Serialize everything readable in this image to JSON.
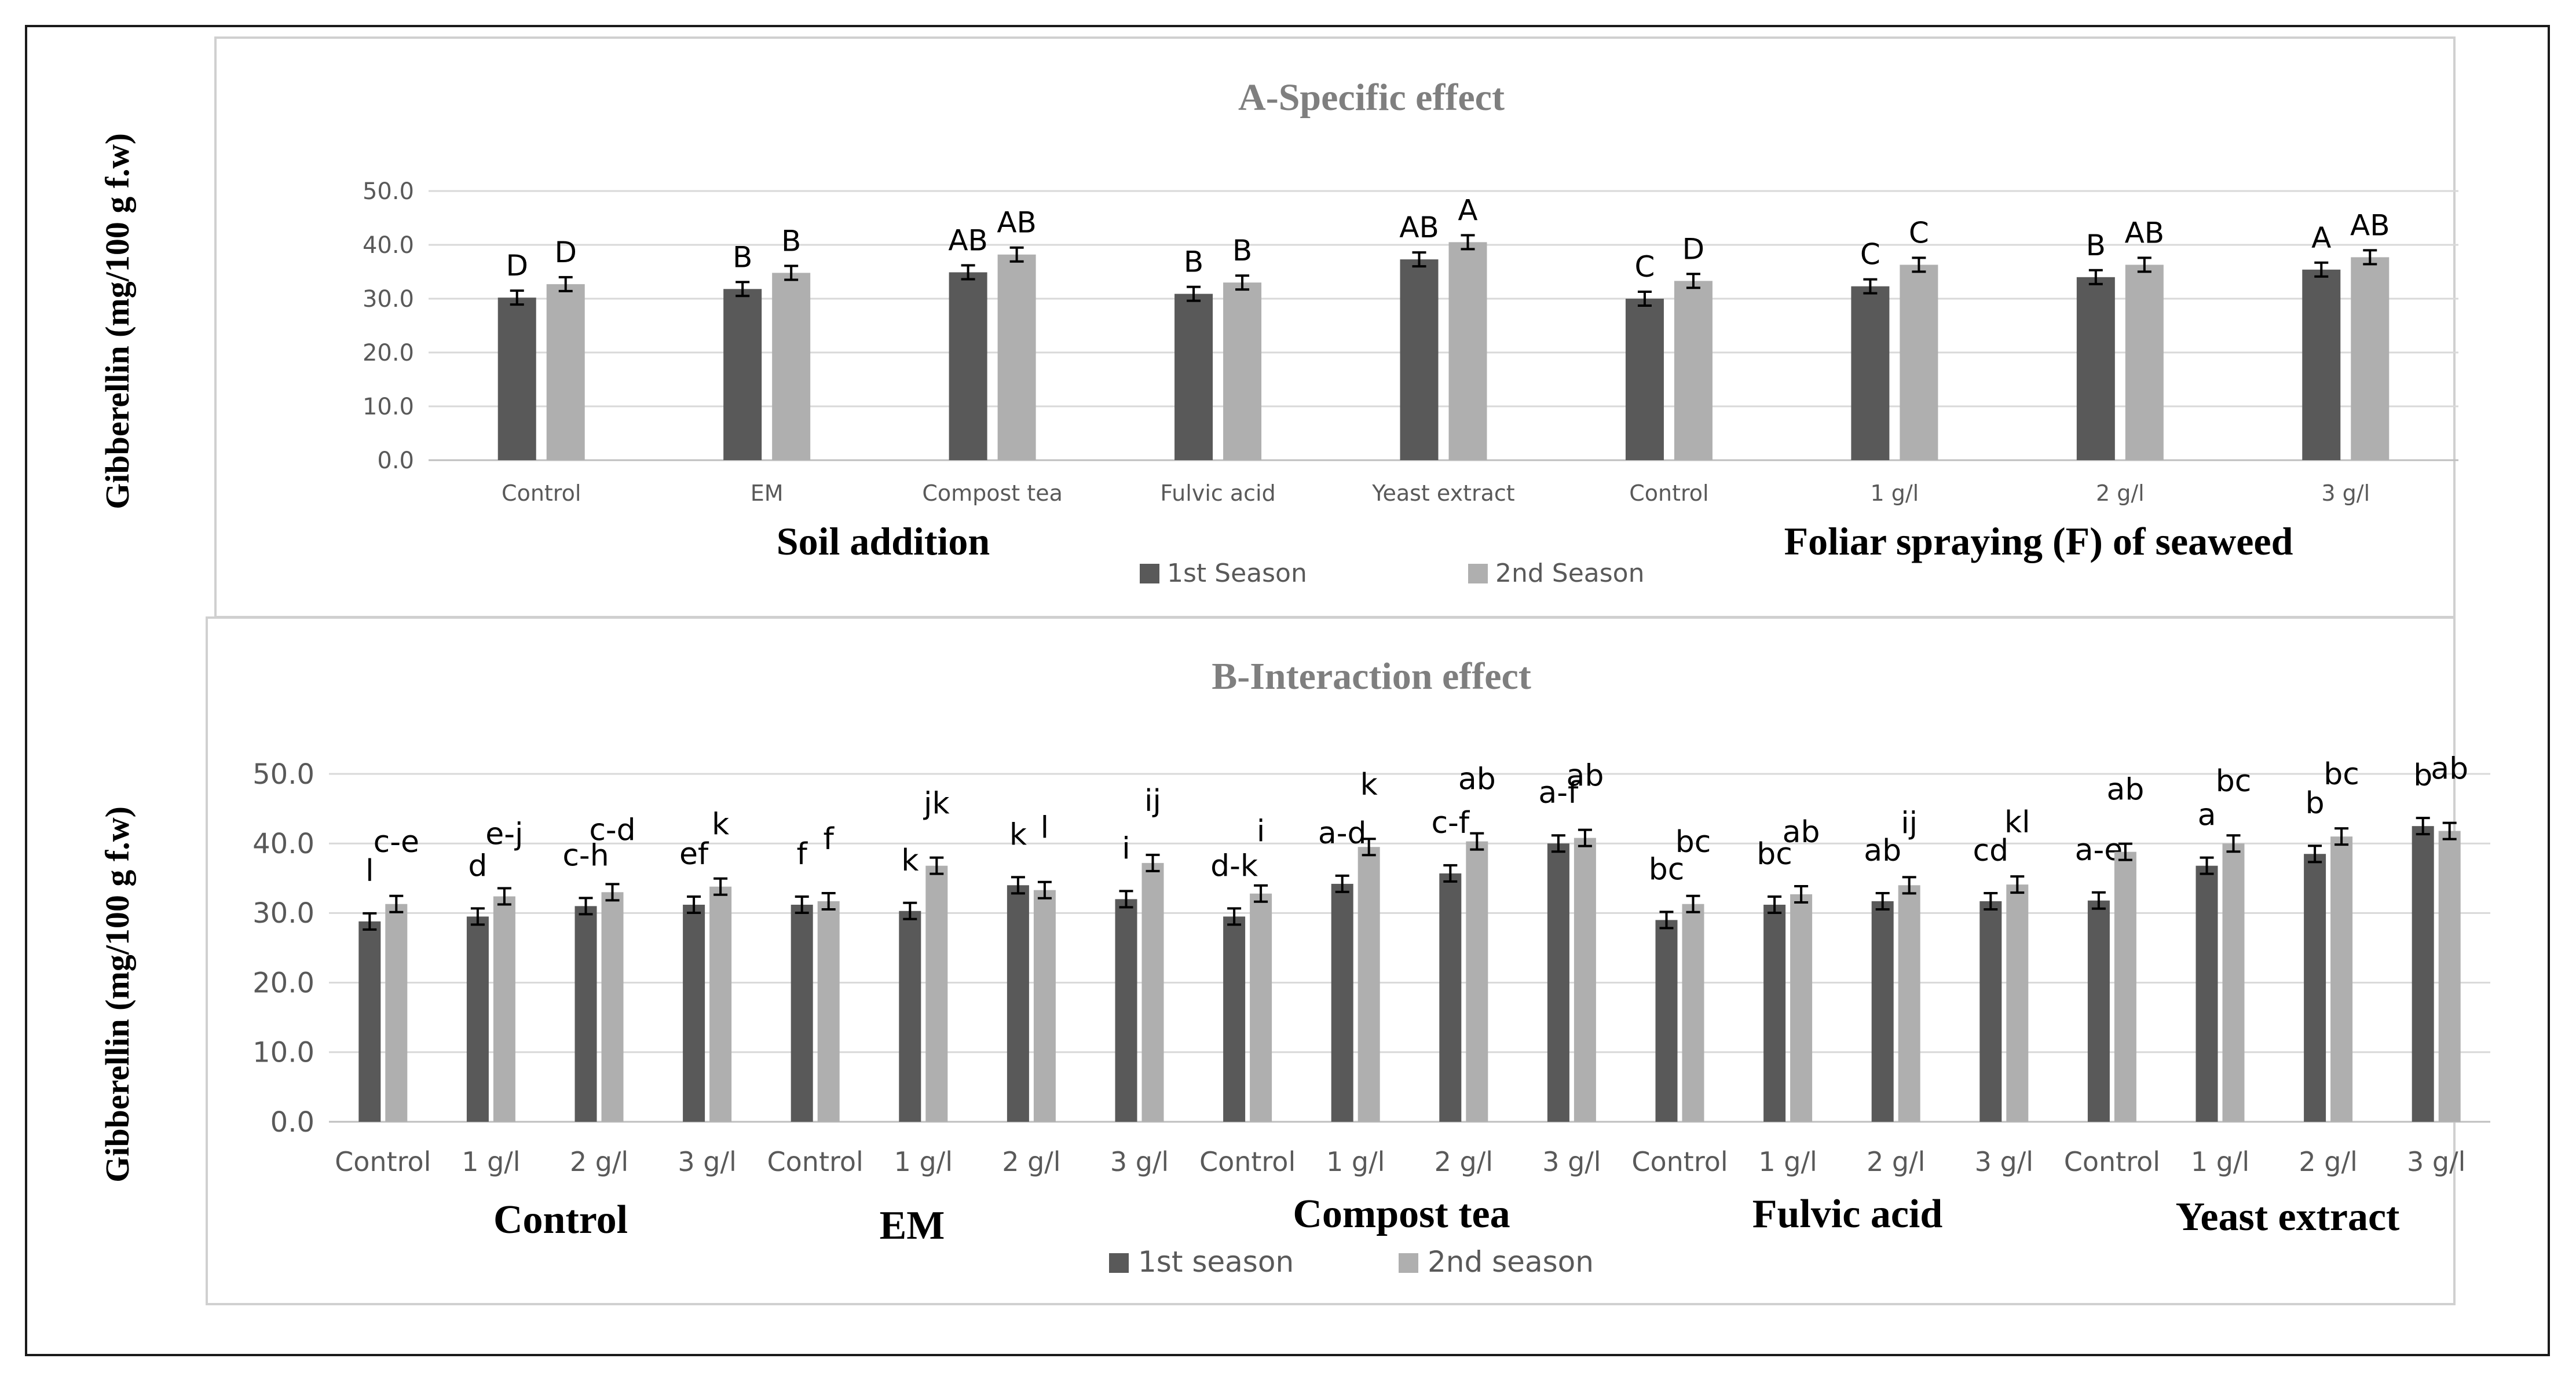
{
  "colors": {
    "season1": "#595959",
    "season2": "#afafaf",
    "grid": "#d9d9d9",
    "axis": "#bfbfbf",
    "tick_text": "#595959",
    "title_text": "#7f7f7f",
    "label_text": "#000000"
  },
  "chart_data": [
    {
      "type": "bar",
      "title": "A-Specific effect",
      "ylabel": "Gibberellin (mg/100 g f.w)",
      "ylim": [
        0,
        50
      ],
      "yticks": [
        "0.0",
        "10.0",
        "20.0",
        "30.0",
        "40.0",
        "50.0"
      ],
      "categories": [
        "Control",
        "EM",
        "Compost tea",
        "Fulvic acid",
        "Yeast extract",
        "Control",
        "1 g/l",
        "2 g/l",
        "3 g/l"
      ],
      "groups": [
        {
          "label": "Soil addition",
          "categories": [
            "Control",
            "EM",
            "Compost tea",
            "Fulvic acid",
            "Yeast extract"
          ]
        },
        {
          "label": "Foliar spraying (F) of seaweed",
          "categories": [
            "Control",
            "1 g/l",
            "2 g/l",
            "3 g/l"
          ]
        }
      ],
      "series": [
        {
          "name": "1st Season",
          "values": [
            30.2,
            31.8,
            34.9,
            30.9,
            37.3,
            30.0,
            32.3,
            34.0,
            35.4
          ],
          "letters": [
            "D",
            "B",
            "AB",
            "B",
            "AB",
            "C",
            "C",
            "B",
            "A"
          ]
        },
        {
          "name": "2nd Season",
          "values": [
            32.7,
            34.8,
            38.2,
            33.0,
            40.5,
            33.3,
            36.3,
            36.3,
            37.7
          ],
          "letters": [
            "D",
            "B",
            "AB",
            "B",
            "A",
            "D",
            "C",
            "AB",
            "AB"
          ]
        }
      ]
    },
    {
      "type": "bar",
      "title": "B-Interaction effect",
      "ylabel": "Gibberellin (mg/100 g f.w)",
      "ylim": [
        0,
        50
      ],
      "yticks": [
        "0.0",
        "10.0",
        "20.0",
        "30.0",
        "40.0",
        "50.0"
      ],
      "categories": [
        "Control",
        "1 g/l",
        "2 g/l",
        "3 g/l",
        "Control",
        "1 g/l",
        "2 g/l",
        "3 g/l",
        "Control",
        "1 g/l",
        "2 g/l",
        "3 g/l",
        "Control",
        "1 g/l",
        "2 g/l",
        "3 g/l",
        "Control",
        "1 g/l",
        "2 g/l",
        "3 g/l"
      ],
      "groups": [
        {
          "label": "Control",
          "categories": [
            "Control",
            "1 g/l",
            "2 g/l",
            "3 g/l"
          ]
        },
        {
          "label": "EM",
          "categories": [
            "Control",
            "1 g/l",
            "2 g/l",
            "3 g/l"
          ]
        },
        {
          "label": "Compost tea",
          "categories": [
            "Control",
            "1 g/l",
            "2 g/l",
            "3 g/l"
          ]
        },
        {
          "label": "Fulvic acid",
          "categories": [
            "Control",
            "1 g/l",
            "2 g/l",
            "3 g/l"
          ]
        },
        {
          "label": "Yeast extract",
          "categories": [
            "Control",
            "1 g/l",
            "2 g/l",
            "3 g/l"
          ]
        }
      ],
      "series": [
        {
          "name": "1st season",
          "values": [
            28.8,
            29.5,
            31.0,
            31.2,
            31.2,
            30.3,
            34.0,
            32.0,
            29.5,
            34.2,
            35.7,
            40.0,
            29.0,
            31.2,
            31.7,
            31.7,
            31.8,
            36.8,
            38.5,
            42.5
          ],
          "letters": [
            "l",
            "d",
            "c-h",
            "ef",
            "f",
            "k",
            "k",
            "i",
            "d-k",
            "a-d",
            "c-f",
            "a-f",
            "bc",
            "bc",
            "ab",
            "cd",
            "a-e",
            "a",
            "b",
            "b"
          ]
        },
        {
          "name": "2nd season",
          "values": [
            31.3,
            32.4,
            33.0,
            33.8,
            31.7,
            36.8,
            33.3,
            37.2,
            32.8,
            39.5,
            40.3,
            40.8,
            31.3,
            32.7,
            34.0,
            34.1,
            38.8,
            40.0,
            41.0,
            41.8
          ],
          "letters": [
            "c-e",
            "e-j",
            "c-d",
            "k",
            "f",
            "jk",
            "l",
            "ij",
            "i",
            "k",
            "ab",
            "ab",
            "bc",
            "ab",
            "ij",
            "kl",
            "ab",
            "bc",
            "bc",
            "ab"
          ]
        }
      ]
    }
  ]
}
